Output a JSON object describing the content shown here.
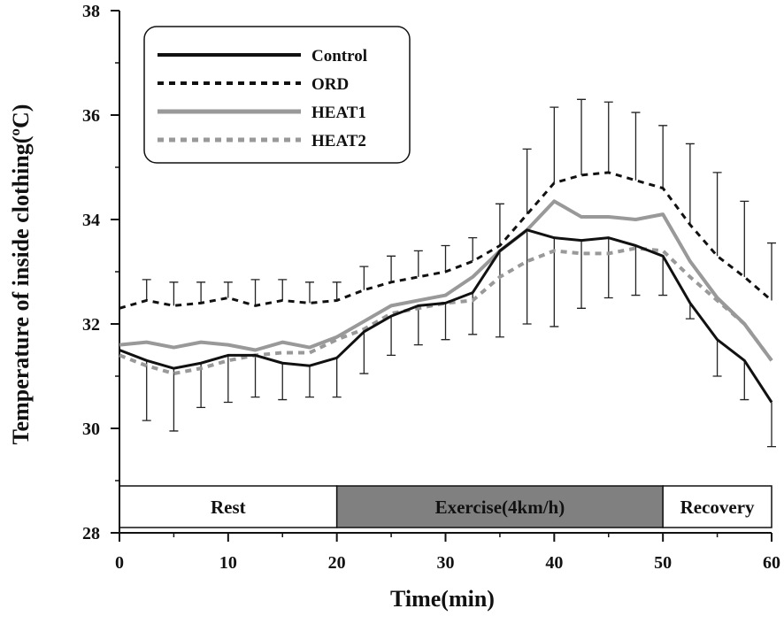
{
  "chart_data": {
    "type": "line",
    "xlabel": "Time(min)",
    "ylabel": "Temperature of inside clothing(ºC)",
    "x": [
      0,
      2.5,
      5,
      7.5,
      10,
      12.5,
      15,
      17.5,
      20,
      22.5,
      25,
      27.5,
      30,
      32.5,
      35,
      37.5,
      40,
      42.5,
      45,
      47.5,
      50,
      52.5,
      55,
      57.5,
      60
    ],
    "series": [
      {
        "name": "Control",
        "color": "#111111",
        "style": "solid",
        "error_direction": "down",
        "values": [
          31.5,
          31.3,
          31.15,
          31.25,
          31.4,
          31.4,
          31.25,
          31.2,
          31.35,
          31.85,
          32.15,
          32.35,
          32.4,
          32.6,
          33.4,
          33.8,
          33.65,
          33.6,
          33.65,
          33.5,
          33.3,
          32.4,
          31.7,
          31.3,
          30.5
        ],
        "errors": [
          null,
          1.15,
          1.2,
          0.85,
          0.9,
          0.8,
          0.7,
          0.6,
          0.75,
          0.8,
          0.75,
          0.75,
          0.7,
          0.8,
          1.65,
          1.8,
          1.7,
          1.3,
          1.15,
          0.95,
          0.75,
          0.3,
          0.7,
          0.75,
          0.85
        ]
      },
      {
        "name": "ORD",
        "color": "#111111",
        "style": "dashed",
        "error_direction": "up",
        "values": [
          32.3,
          32.45,
          32.35,
          32.4,
          32.5,
          32.35,
          32.45,
          32.4,
          32.45,
          32.65,
          32.8,
          32.9,
          33.0,
          33.2,
          33.5,
          34.1,
          34.7,
          34.85,
          34.9,
          34.75,
          34.6,
          33.9,
          33.3,
          32.9,
          32.45
        ],
        "errors": [
          null,
          0.4,
          0.45,
          0.4,
          0.3,
          0.5,
          0.4,
          0.4,
          0.35,
          0.45,
          0.5,
          0.5,
          0.5,
          0.45,
          0.8,
          1.25,
          1.45,
          1.45,
          1.35,
          1.3,
          1.2,
          1.55,
          1.6,
          1.45,
          1.1
        ]
      },
      {
        "name": "HEAT1",
        "color": "#999999",
        "style": "solid",
        "values": [
          31.6,
          31.65,
          31.55,
          31.65,
          31.6,
          31.5,
          31.65,
          31.55,
          31.75,
          32.05,
          32.35,
          32.45,
          32.55,
          32.9,
          33.4,
          33.8,
          34.35,
          34.05,
          34.05,
          34.0,
          34.1,
          33.2,
          32.5,
          32.0,
          31.3
        ]
      },
      {
        "name": "HEAT2",
        "color": "#999999",
        "style": "dashed",
        "values": [
          31.4,
          31.2,
          31.05,
          31.15,
          31.3,
          31.4,
          31.45,
          31.45,
          31.7,
          31.9,
          32.2,
          32.3,
          32.4,
          32.45,
          32.9,
          33.2,
          33.4,
          33.35,
          33.35,
          33.45,
          33.4,
          32.9,
          32.45,
          32.0,
          31.3
        ]
      }
    ],
    "phases": [
      {
        "label": "Rest",
        "start": 0,
        "end": 20,
        "color": "#ffffff"
      },
      {
        "label": "Exercise(4km/h)",
        "start": 20,
        "end": 50,
        "color": "#808080"
      },
      {
        "label": "Recovery",
        "start": 50,
        "end": 60,
        "color": "#ffffff"
      }
    ],
    "xlim": [
      0,
      60
    ],
    "xticks": [
      0,
      10,
      20,
      30,
      40,
      50,
      60
    ],
    "ylim": [
      28,
      38
    ],
    "yticks": [
      28,
      30,
      32,
      34,
      36,
      38
    ]
  }
}
